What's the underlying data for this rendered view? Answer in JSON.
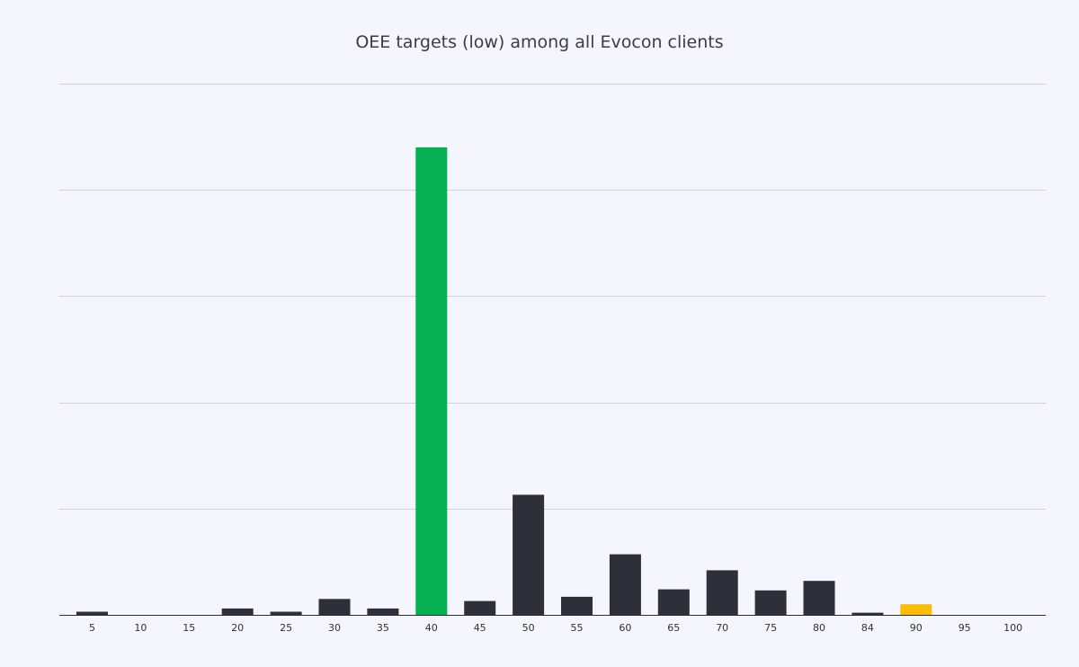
{
  "chart_data": {
    "type": "bar",
    "title": "OEE targets (low) among all Evocon clients",
    "xlabel": "",
    "ylabel": "",
    "categories": [
      "5",
      "10",
      "15",
      "20",
      "25",
      "30",
      "35",
      "40",
      "45",
      "50",
      "55",
      "60",
      "65",
      "70",
      "75",
      "80",
      "84",
      "90",
      "95",
      "100"
    ],
    "values": [
      0.15,
      0,
      0,
      0.3,
      0.15,
      0.75,
      0.3,
      22,
      0.65,
      5.65,
      0.85,
      2.85,
      1.2,
      2.1,
      1.15,
      1.6,
      0.1,
      0.5,
      0,
      0
    ],
    "colors": [
      "#2d3038",
      "#2d3038",
      "#2d3038",
      "#2d3038",
      "#2d3038",
      "#2d3038",
      "#2d3038",
      "#05b052",
      "#2d3038",
      "#2d3038",
      "#2d3038",
      "#2d3038",
      "#2d3038",
      "#2d3038",
      "#2d3038",
      "#2d3038",
      "#2d3038",
      "#fbbc05",
      "#2d3038",
      "#2d3038"
    ],
    "ylim": [
      0,
      25
    ],
    "yticks": [
      0,
      5,
      10,
      15,
      20,
      25
    ],
    "y_tick_labels_shown": false,
    "grid": true,
    "legend": "none"
  }
}
